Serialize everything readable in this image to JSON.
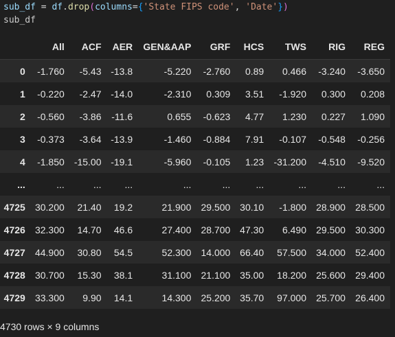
{
  "code": {
    "line1": {
      "var": "sub_df",
      "eq": " = ",
      "obj": "df",
      "dot": ".",
      "fn": "drop",
      "open": "(",
      "kw": "columns",
      "kweq": "=",
      "lbrace": "{",
      "s1": "'State FIPS code'",
      "comma": ", ",
      "s2": "'Date'",
      "rbrace": "}",
      "close": ")"
    },
    "line2": "sub_df"
  },
  "table": {
    "columns": [
      "",
      "All",
      "ACF",
      "AER",
      "GEN&AAP",
      "GRF",
      "HCS",
      "TWS",
      "RIG",
      "REG"
    ],
    "rows": [
      [
        "0",
        "-1.760",
        "-5.43",
        "-13.8",
        "-5.220",
        "-2.760",
        "0.89",
        "0.466",
        "-3.240",
        "-3.650"
      ],
      [
        "1",
        "-0.220",
        "-2.47",
        "-14.0",
        "-2.310",
        "0.309",
        "3.51",
        "-1.920",
        "0.300",
        "0.208"
      ],
      [
        "2",
        "-0.560",
        "-3.86",
        "-11.6",
        "0.655",
        "-0.623",
        "4.77",
        "1.230",
        "0.227",
        "1.090"
      ],
      [
        "3",
        "-0.373",
        "-3.64",
        "-13.9",
        "-1.460",
        "-0.884",
        "7.91",
        "-0.107",
        "-0.548",
        "-0.256"
      ],
      [
        "4",
        "-1.850",
        "-15.00",
        "-19.1",
        "-5.960",
        "-0.105",
        "1.23",
        "-31.200",
        "-4.510",
        "-9.520"
      ],
      [
        "...",
        "...",
        "...",
        "...",
        "...",
        "...",
        "...",
        "...",
        "...",
        "..."
      ],
      [
        "4725",
        "30.200",
        "21.40",
        "19.2",
        "21.900",
        "29.500",
        "30.10",
        "-1.800",
        "28.900",
        "28.500"
      ],
      [
        "4726",
        "32.300",
        "14.70",
        "46.6",
        "27.400",
        "28.700",
        "47.30",
        "6.490",
        "29.500",
        "30.300"
      ],
      [
        "4727",
        "44.900",
        "30.80",
        "54.5",
        "52.300",
        "14.000",
        "66.40",
        "57.500",
        "34.000",
        "52.400"
      ],
      [
        "4728",
        "30.700",
        "15.30",
        "38.1",
        "31.100",
        "21.100",
        "35.00",
        "18.200",
        "25.600",
        "29.400"
      ],
      [
        "4729",
        "33.300",
        "9.90",
        "14.1",
        "14.300",
        "25.200",
        "35.70",
        "97.000",
        "25.700",
        "26.400"
      ]
    ]
  },
  "footer": "4730 rows × 9 columns",
  "colors": {
    "background": "#1f1f1f",
    "row_alt": "#2a2a2a",
    "text": "#e6e6e6"
  }
}
